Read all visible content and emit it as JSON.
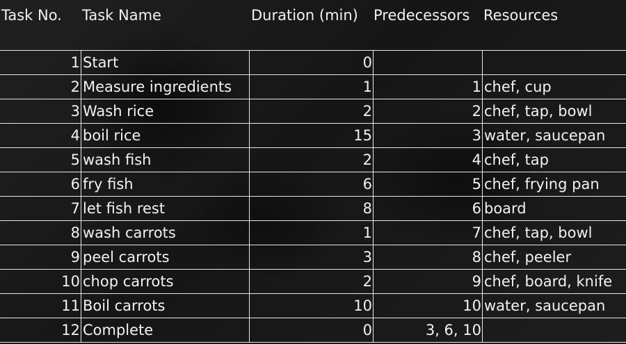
{
  "headers": {
    "task_no": "Task No.",
    "task_name": "Task Name",
    "duration": "Duration (min)",
    "predecessors": "Predecessors",
    "resources": "Resources"
  },
  "rows": [
    {
      "no": "1",
      "name": "Start",
      "duration": "0",
      "pred": "",
      "res": ""
    },
    {
      "no": "2",
      "name": "Measure ingredients",
      "duration": "1",
      "pred": "1",
      "res": "chef, cup"
    },
    {
      "no": "3",
      "name": "Wash rice",
      "duration": "2",
      "pred": "2",
      "res": "chef, tap, bowl"
    },
    {
      "no": "4",
      "name": "boil rice",
      "duration": "15",
      "pred": "3",
      "res": "water, saucepan"
    },
    {
      "no": "5",
      "name": "wash fish",
      "duration": "2",
      "pred": "4",
      "res": "chef, tap"
    },
    {
      "no": "6",
      "name": "fry fish",
      "duration": "6",
      "pred": "5",
      "res": "chef, frying pan"
    },
    {
      "no": "7",
      "name": "let fish rest",
      "duration": "8",
      "pred": "6",
      "res": "board"
    },
    {
      "no": "8",
      "name": "wash carrots",
      "duration": "1",
      "pred": "7",
      "res": "chef, tap, bowl"
    },
    {
      "no": "9",
      "name": "peel carrots",
      "duration": "3",
      "pred": "8",
      "res": "chef, peeler"
    },
    {
      "no": "10",
      "name": "chop carrots",
      "duration": "2",
      "pred": "9",
      "res": "chef, board, knife"
    },
    {
      "no": "11",
      "name": "Boil carrots",
      "duration": "10",
      "pred": "10",
      "res": "water, saucepan"
    },
    {
      "no": "12",
      "name": "Complete",
      "duration": "0",
      "pred": "3, 6, 10",
      "res": ""
    }
  ]
}
